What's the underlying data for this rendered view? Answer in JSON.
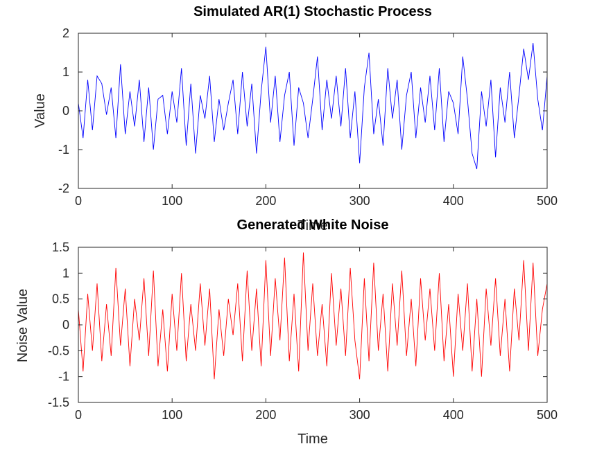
{
  "chart_data": [
    {
      "type": "line",
      "title": "Simulated AR(1) Stochastic Process",
      "xlabel": "Time",
      "ylabel": "Value",
      "xlim": [
        0,
        500
      ],
      "ylim": [
        -2,
        2
      ],
      "xticks": [
        0,
        100,
        200,
        300,
        400,
        500
      ],
      "yticks": [
        -2,
        -1,
        0,
        1,
        2
      ],
      "grid": false,
      "series": [
        {
          "color": "#0000ff",
          "x": [
            0,
            5,
            10,
            15,
            20,
            25,
            30,
            35,
            40,
            45,
            50,
            55,
            60,
            65,
            70,
            75,
            80,
            85,
            90,
            95,
            100,
            105,
            110,
            115,
            120,
            125,
            130,
            135,
            140,
            145,
            150,
            155,
            160,
            165,
            170,
            175,
            180,
            185,
            190,
            195,
            200,
            205,
            210,
            215,
            220,
            225,
            230,
            235,
            240,
            245,
            250,
            255,
            260,
            265,
            270,
            275,
            280,
            285,
            290,
            295,
            300,
            305,
            310,
            315,
            320,
            325,
            330,
            335,
            340,
            345,
            350,
            355,
            360,
            365,
            370,
            375,
            380,
            385,
            390,
            395,
            400,
            405,
            410,
            415,
            420,
            425,
            430,
            435,
            440,
            445,
            450,
            455,
            460,
            465,
            470,
            475,
            480,
            485,
            490,
            495,
            500
          ],
          "y": [
            0.2,
            -0.7,
            0.8,
            -0.5,
            0.9,
            0.7,
            -0.1,
            0.6,
            -0.7,
            1.2,
            -0.6,
            0.5,
            -0.4,
            0.8,
            -0.8,
            0.6,
            -1.0,
            0.3,
            0.4,
            -0.6,
            0.5,
            -0.3,
            1.1,
            -0.9,
            0.7,
            -1.1,
            0.4,
            -0.2,
            0.9,
            -0.8,
            0.3,
            -0.5,
            0.2,
            0.8,
            -0.6,
            1.0,
            -0.4,
            0.7,
            -1.1,
            0.5,
            1.65,
            -0.3,
            0.9,
            -0.8,
            0.4,
            1.0,
            -0.9,
            0.6,
            0.2,
            -0.7,
            0.3,
            1.4,
            -0.5,
            0.8,
            -0.2,
            0.9,
            -0.4,
            1.1,
            -0.7,
            0.5,
            -1.35,
            0.6,
            1.5,
            -0.6,
            0.3,
            -0.9,
            1.1,
            -0.2,
            0.8,
            -1.0,
            0.4,
            1.0,
            -0.7,
            0.6,
            -0.3,
            0.9,
            -0.5,
            1.1,
            -0.8,
            0.5,
            0.2,
            -0.6,
            1.4,
            0.3,
            -1.1,
            -1.5,
            0.5,
            -0.4,
            0.8,
            -1.2,
            0.6,
            -0.3,
            1.0,
            -0.7,
            0.4,
            1.6,
            0.8,
            1.75,
            0.3,
            -0.5,
            0.9
          ]
        }
      ]
    },
    {
      "type": "line",
      "title": "Generated White Noise",
      "xlabel": "Time",
      "ylabel": "Noise Value",
      "xlim": [
        0,
        500
      ],
      "ylim": [
        -1.5,
        1.5
      ],
      "xticks": [
        0,
        100,
        200,
        300,
        400,
        500
      ],
      "yticks": [
        -1.5,
        -1,
        -0.5,
        0,
        0.5,
        1,
        1.5
      ],
      "grid": false,
      "series": [
        {
          "color": "#ff0000",
          "x": [
            0,
            5,
            10,
            15,
            20,
            25,
            30,
            35,
            40,
            45,
            50,
            55,
            60,
            65,
            70,
            75,
            80,
            85,
            90,
            95,
            100,
            105,
            110,
            115,
            120,
            125,
            130,
            135,
            140,
            145,
            150,
            155,
            160,
            165,
            170,
            175,
            180,
            185,
            190,
            195,
            200,
            205,
            210,
            215,
            220,
            225,
            230,
            235,
            240,
            245,
            250,
            255,
            260,
            265,
            270,
            275,
            280,
            285,
            290,
            295,
            300,
            305,
            310,
            315,
            320,
            325,
            330,
            335,
            340,
            345,
            350,
            355,
            360,
            365,
            370,
            375,
            380,
            385,
            390,
            395,
            400,
            405,
            410,
            415,
            420,
            425,
            430,
            435,
            440,
            445,
            450,
            455,
            460,
            465,
            470,
            475,
            480,
            485,
            490,
            495,
            500
          ],
          "y": [
            0.3,
            -0.9,
            0.6,
            -0.5,
            0.8,
            -0.7,
            0.4,
            -0.6,
            1.1,
            -0.4,
            0.7,
            -0.8,
            0.5,
            -0.3,
            0.9,
            -0.6,
            1.05,
            -0.8,
            0.3,
            -0.9,
            0.6,
            -0.5,
            1.0,
            -0.7,
            0.4,
            -0.5,
            0.8,
            -0.4,
            0.7,
            -1.05,
            0.3,
            -0.6,
            0.5,
            -0.2,
            0.8,
            -0.7,
            1.05,
            -0.5,
            0.7,
            -0.8,
            1.25,
            -0.6,
            0.9,
            -0.3,
            1.3,
            -0.7,
            0.6,
            -0.9,
            1.4,
            -0.5,
            0.8,
            -0.6,
            0.4,
            -0.8,
            1.0,
            -0.4,
            0.7,
            -0.6,
            1.1,
            -0.3,
            -1.05,
            0.9,
            -0.7,
            1.2,
            -0.5,
            0.6,
            -0.9,
            0.8,
            -0.4,
            1.05,
            -0.6,
            0.5,
            -0.8,
            0.9,
            -0.3,
            0.7,
            -0.5,
            1.0,
            -0.7,
            0.4,
            -1.0,
            0.6,
            -0.5,
            0.8,
            -0.9,
            0.5,
            -1.0,
            0.7,
            -0.4,
            0.9,
            -0.6,
            0.5,
            -0.9,
            0.7,
            -0.3,
            1.25,
            -0.5,
            1.2,
            -0.6,
            0.3,
            0.8
          ]
        }
      ]
    }
  ]
}
